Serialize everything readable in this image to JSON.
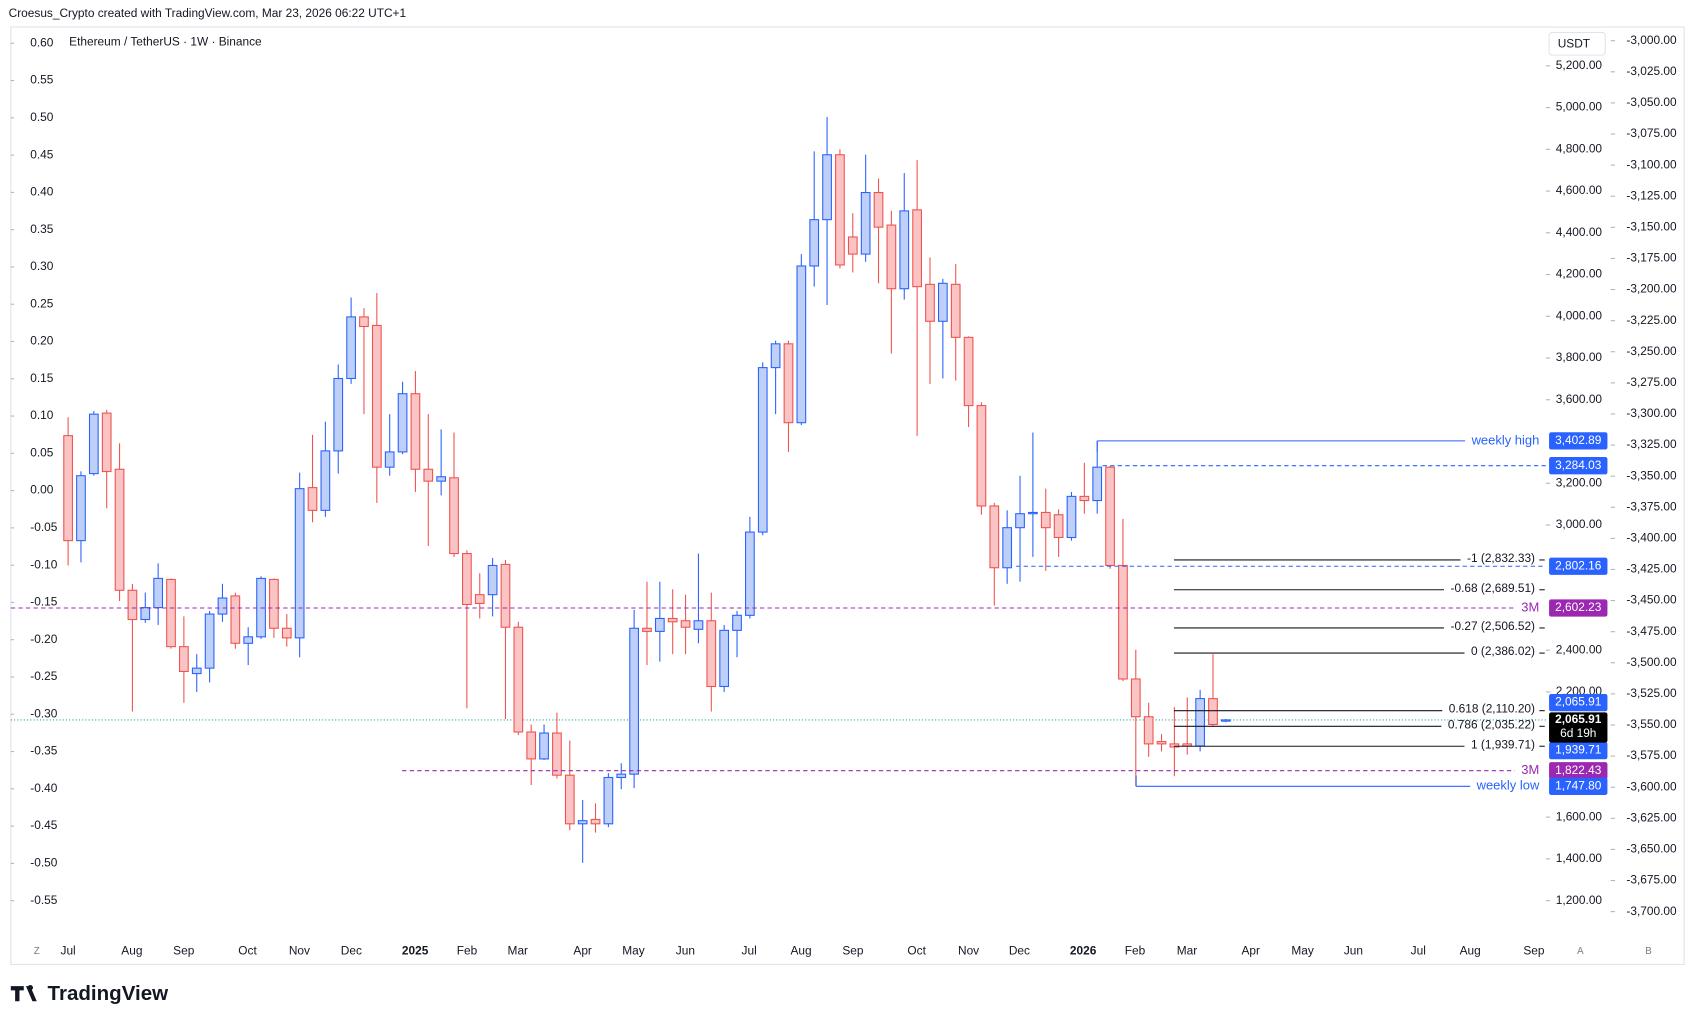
{
  "header": "Croesus_Crypto created with TradingView.com, Mar 23, 2026 06:22 UTC+1",
  "footer": "TradingView",
  "chart_data": {
    "type": "candlestick",
    "title": "Ethereum / TetherUS · 1W · Binance",
    "currency": "USDT",
    "up_color": "#2962ff",
    "up_fill": "#bfd0f8",
    "down_color": "#ef5350",
    "down_fill": "#f9c4c3",
    "open": [
      3428,
      2925,
      3246,
      3536,
      3267,
      2687,
      2547,
      2604,
      2739,
      2417,
      2288,
      2314,
      2573,
      2660,
      2433,
      2464,
      2739,
      2505,
      2459,
      3179,
      3070,
      3355,
      3702,
      3997,
      3956,
      3277,
      3350,
      3629,
      3267,
      3210,
      3226,
      2863,
      2666,
      2666,
      2811,
      2510,
      2008,
      1879,
      2003,
      1801,
      1568,
      1589,
      1568,
      1790,
      1806,
      2505,
      2490,
      2552,
      2541,
      2500,
      2541,
      2226,
      2495,
      2567,
      2966,
      3754,
      3868,
      3490,
      4241,
      4463,
      4774,
      4380,
      4298,
      4593,
      4437,
      4132,
      4510,
      4153,
      3976,
      4153,
      3899,
      3572,
      3091,
      2795,
      2987,
      3054,
      3060,
      3049,
      2940,
      3137,
      3117,
      3277,
      2806,
      2262,
      2081,
      1962,
      1951,
      1951,
      1941,
      2168,
      2060
    ],
    "high": [
      3516,
      3257,
      3546,
      3552,
      3391,
      2718,
      2676,
      2816,
      2744,
      2562,
      2381,
      2588,
      2718,
      2676,
      2510,
      2754,
      2744,
      2573,
      3251,
      3432,
      3495,
      3769,
      4090,
      4039,
      4111,
      3531,
      3686,
      3738,
      3531,
      3458,
      3443,
      2878,
      2769,
      2842,
      2832,
      2536,
      2044,
      2044,
      2101,
      1967,
      1682,
      1666,
      1811,
      1858,
      2593,
      2728,
      2728,
      2692,
      2666,
      2863,
      2676,
      2521,
      2588,
      3039,
      3780,
      3883,
      3883,
      4298,
      4790,
      4955,
      4800,
      4494,
      4774,
      4660,
      4505,
      4686,
      4748,
      4282,
      4179,
      4251,
      3904,
      3588,
      3106,
      3070,
      3236,
      3443,
      3174,
      3075,
      3158,
      3298,
      3402.89,
      3283,
      3029,
      2402,
      2148,
      1998,
      2127,
      2174,
      2210,
      2381,
      2070
    ],
    "low": [
      2806,
      2821,
      3236,
      3080,
      2635,
      2106,
      2531,
      2521,
      2407,
      2148,
      2200,
      2246,
      2536,
      2407,
      2329,
      2454,
      2459,
      2417,
      2366,
      3013,
      3039,
      3246,
      3676,
      3531,
      3106,
      3236,
      3339,
      3158,
      2899,
      3142,
      2847,
      2122,
      2552,
      2562,
      2070,
      1993,
      1754,
      1874,
      1785,
      1537,
      1381,
      1526,
      1552,
      1734,
      1739,
      2329,
      2345,
      2381,
      2381,
      2433,
      2106,
      2200,
      2366,
      2552,
      2951,
      3531,
      3350,
      3479,
      4142,
      4054,
      4230,
      4210,
      4261,
      4158,
      3821,
      4080,
      3427,
      3676,
      3702,
      3692,
      3469,
      3049,
      2614,
      2718,
      2728,
      2847,
      2780,
      2847,
      2925,
      3054,
      3054,
      2790,
      2252,
      1747.8,
      1889,
      1915,
      1796,
      1899,
      1915,
      2034,
      2055
    ],
    "close": [
      2925,
      3236,
      3531,
      3256,
      2687,
      2547,
      2604,
      2744,
      2417,
      2298,
      2314,
      2573,
      2650,
      2433,
      2464,
      2744,
      2505,
      2459,
      3174,
      3070,
      3355,
      3702,
      3997,
      3951,
      3277,
      3350,
      3629,
      3267,
      3210,
      3231,
      2863,
      2619,
      2624,
      2806,
      2510,
      2008,
      1879,
      2003,
      1801,
      1568,
      1583,
      1568,
      1790,
      1806,
      2505,
      2490,
      2552,
      2536,
      2510,
      2541,
      2226,
      2495,
      2567,
      2966,
      3754,
      3868,
      3490,
      4241,
      4463,
      4774,
      4246,
      4298,
      4593,
      4427,
      4132,
      4505,
      4142,
      3976,
      4158,
      3899,
      3572,
      3091,
      2795,
      2987,
      3054,
      3060,
      2987,
      2940,
      3137,
      3117,
      3277,
      2806,
      2262,
      2081,
      1951,
      1951,
      1936,
      1941,
      2168,
      2044,
      2065.91
    ],
    "xtick_labels": [
      "Jul",
      "Aug",
      "Sep",
      "Oct",
      "Nov",
      "Dec",
      "2025",
      "Feb",
      "Mar",
      "Apr",
      "May",
      "Jun",
      "Jul",
      "Aug",
      "Sep",
      "Oct",
      "Nov",
      "Dec",
      "2026",
      "Feb",
      "Mar",
      "Apr",
      "May",
      "Jun",
      "Jul",
      "Aug",
      "Sep"
    ],
    "ylim": [
      1034,
      5386
    ],
    "yticks": [
      {
        "value": 1200,
        "label": "1,200.00"
      },
      {
        "value": 1400,
        "label": "1,400.00"
      },
      {
        "value": 1600,
        "label": "1,600.00"
      },
      {
        "value": 2200,
        "label": "2,200.00"
      },
      {
        "value": 2400,
        "label": "2,400.00"
      },
      {
        "value": 3000,
        "label": "3,000.00"
      },
      {
        "value": 3200,
        "label": "3,200.00"
      },
      {
        "value": 3600,
        "label": "3,600.00"
      },
      {
        "value": 3800,
        "label": "3,800.00"
      },
      {
        "value": 4000,
        "label": "4,000.00"
      },
      {
        "value": 4200,
        "label": "4,200.00"
      },
      {
        "value": 4400,
        "label": "4,400.00"
      },
      {
        "value": 4600,
        "label": "4,600.00"
      },
      {
        "value": 4800,
        "label": "4,800.00"
      },
      {
        "value": 5000,
        "label": "5,000.00"
      },
      {
        "value": 5200,
        "label": "5,200.00"
      }
    ],
    "left_ylim": [
      -0.5964,
      0.6218
    ],
    "left_yticks": [
      {
        "value": 0.6,
        "label": "0.60"
      },
      0.55,
      {
        "value": 0.5,
        "label": "0.50"
      },
      0.45,
      {
        "value": 0.4,
        "label": "0.40"
      },
      0.35,
      {
        "value": 0.3,
        "label": "0.30"
      },
      0.25,
      {
        "value": 0.2,
        "label": "0.20"
      },
      0.15,
      {
        "value": 0.1,
        "label": "0.10"
      },
      0.05,
      {
        "value": 0,
        "label": "0.00"
      },
      -0.05,
      {
        "value": -0.1,
        "label": "-0.10"
      },
      -0.15,
      {
        "value": -0.2,
        "label": "-0.20"
      },
      -0.25,
      {
        "value": -0.3,
        "label": "-0.30"
      },
      -0.35,
      {
        "value": -0.4,
        "label": "-0.40"
      },
      -0.45,
      {
        "value": -0.5,
        "label": "-0.50"
      },
      -0.55
    ],
    "y2lim": [
      -3719,
      -2989
    ],
    "y2ticks": [
      {
        "value": -3000,
        "label": "-3,000.00"
      },
      {
        "value": -3025,
        "label": "-3,025.00"
      },
      {
        "value": -3050,
        "label": "-3,050.00"
      },
      {
        "value": -3075,
        "label": "-3,075.00"
      },
      {
        "value": -3100,
        "label": "-3,100.00"
      },
      {
        "value": -3125,
        "label": "-3,125.00"
      },
      {
        "value": -3150,
        "label": "-3,150.00"
      },
      {
        "value": -3175,
        "label": "-3,175.00"
      },
      {
        "value": -3200,
        "label": "-3,200.00"
      },
      {
        "value": -3225,
        "label": "-3,225.00"
      },
      {
        "value": -3250,
        "label": "-3,250.00"
      },
      {
        "value": -3275,
        "label": "-3,275.00"
      },
      {
        "value": -3300,
        "label": "-3,300.00"
      },
      {
        "value": -3325,
        "label": "-3,325.00"
      },
      {
        "value": -3350,
        "label": "-3,350.00"
      },
      {
        "value": -3375,
        "label": "-3,375.00"
      },
      {
        "value": -3400,
        "label": "-3,400.00"
      },
      {
        "value": -3425,
        "label": "-3,425.00"
      },
      {
        "value": -3450,
        "label": "-3,450.00"
      },
      {
        "value": -3475,
        "label": "-3,475.00"
      },
      {
        "value": -3500,
        "label": "-3,500.00"
      },
      {
        "value": -3525,
        "label": "-3,525.00"
      },
      {
        "value": -3550,
        "label": "-3,550.00"
      },
      {
        "value": -3575,
        "label": "-3,575.00"
      },
      {
        "value": -3600,
        "label": "-3,600.00"
      },
      {
        "value": -3625,
        "label": "-3,625.00"
      },
      {
        "value": -3650,
        "label": "-3,650.00"
      },
      {
        "value": -3675,
        "label": "-3,675.00"
      },
      {
        "value": -3700,
        "label": "-3,700.00"
      }
    ],
    "levels": [
      {
        "name": "weekly high",
        "value": 3402.89,
        "label": "3,402.89",
        "color": "#2962ff",
        "style": "solid"
      },
      {
        "value": 3284.03,
        "label": "3,284.03",
        "color": "#2962ff",
        "style": "dashed"
      },
      {
        "value": 2802.16,
        "label": "2,802.16",
        "color": "#2962ff",
        "style": "dashed"
      },
      {
        "name": "3M",
        "value": 2602.23,
        "label": "2,602.23",
        "color": "#9c27b0",
        "style": "dashed"
      },
      {
        "name": "3M",
        "value": 1822.43,
        "label": "1,822.43",
        "color": "#9c27b0",
        "style": "dashed"
      },
      {
        "name": "weekly low",
        "value": 1747.8,
        "label": "1,747.80",
        "color": "#2962ff",
        "style": "solid"
      }
    ],
    "fib_levels": [
      {
        "value": 2832.33,
        "label": "-1 (2,832.33)"
      },
      {
        "value": 2689.51,
        "label": "-0.68 (2,689.51)"
      },
      {
        "value": 2506.52,
        "label": "-0.27 (2,506.52)"
      },
      {
        "value": 2386.02,
        "label": "0 (2,386.02)"
      },
      {
        "value": 2110.2,
        "label": "0.618 (2,110.20)"
      },
      {
        "value": 2035.22,
        "label": "0.786 (2,035.22)"
      },
      {
        "value": 1939.71,
        "label": "1 (1,939.71)",
        "tag": "1,939.71"
      }
    ],
    "last_price": {
      "value": 2065.91,
      "label": "2,065.91",
      "countdown": "6d 19h"
    },
    "axis_buttons": [
      "Z",
      "A",
      "B"
    ]
  }
}
